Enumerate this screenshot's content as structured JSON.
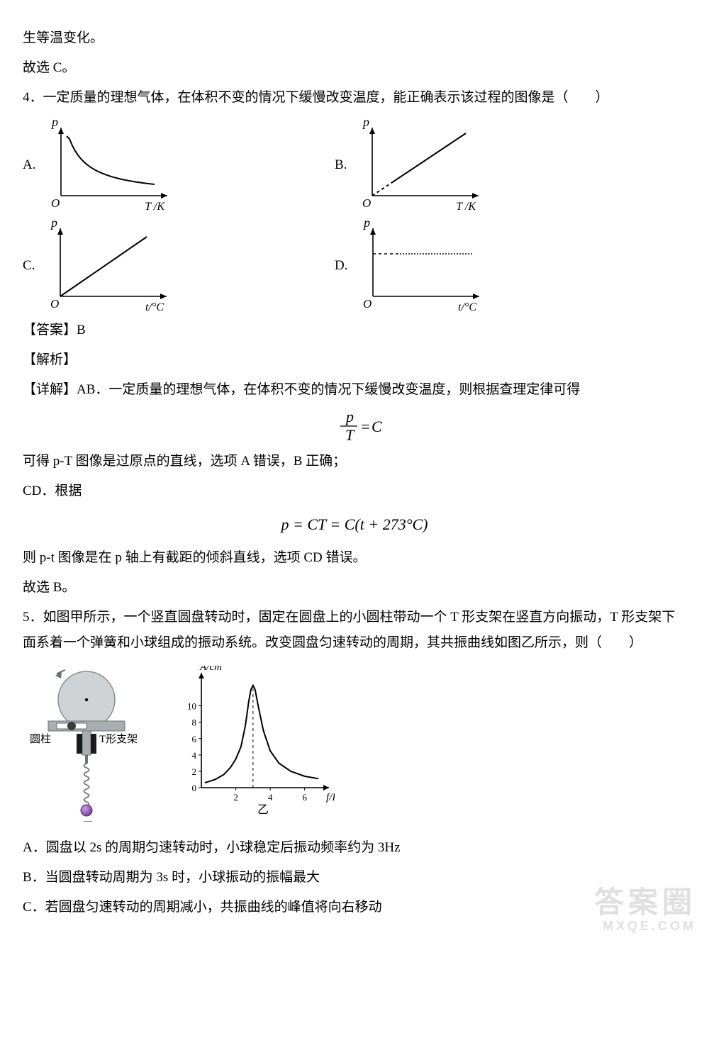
{
  "page_background": "#ffffff",
  "text_color": "#000000",
  "font_family": "SimSun",
  "font_size_pt": 14,
  "intro": {
    "prev_line": "生等温变化。",
    "conclude": "故选 C。"
  },
  "q4": {
    "stem_prefix": "4．一定质量的理想气体，在体积不变的情况下缓慢改变温度，能正确表示该过程的图像是（　　）",
    "options": {
      "A": {
        "letter": "A.",
        "type": "pT_hyperbola",
        "x_label": "T /K",
        "y_label": "p",
        "axis_color": "#000000",
        "curve_color": "#000000",
        "line_width": 2
      },
      "B": {
        "letter": "B.",
        "type": "pT_line_through_origin_offset",
        "x_label": "T /K",
        "y_label": "p",
        "axis_color": "#000000",
        "curve_color": "#000000",
        "dashed_segment": true,
        "line_width": 2
      },
      "C": {
        "letter": "C.",
        "type": "pt_line_through_origin",
        "x_label": "t/°C",
        "y_label": "p",
        "axis_color": "#000000",
        "curve_color": "#000000",
        "line_width": 2
      },
      "D": {
        "letter": "D.",
        "type": "pt_constant_then_flat",
        "x_label": "t/°C",
        "y_label": "p",
        "axis_color": "#000000",
        "curve_color": "#000000",
        "dashed_prefix": true,
        "line_width": 2
      }
    },
    "answer_label": "【答案】B",
    "explain_label": "【解析】",
    "detail_ab": "【详解】AB．一定质量的理想气体，在体积不变的情况下缓慢改变温度，则根据查理定律可得",
    "formula1": "p / T = C",
    "detail_ab_follow": "可得 p-T 图像是过原点的直线，选项 A 错误，B 正确；",
    "detail_cd": "CD．根据",
    "formula2": "p = CT = C(t + 273°C)",
    "detail_cd_follow": "则 p-t 图像是在 p 轴上有截距的倾斜直线，选项 CD 错误。",
    "conclude": "故选 B。"
  },
  "q5": {
    "stem": "5．如图甲所示，一个竖直圆盘转动时，固定在圆盘上的小圆柱带动一个 T 形支架在竖直方向振动，T 形支架下面系着一个弹簧和小球组成的振动系统。改变圆盘匀速转动的周期，其共振曲线如图乙所示，则（　　）",
    "fig_labels": {
      "left": "甲",
      "right": "乙",
      "cylinder": "圆柱",
      "tframe": "T形支架"
    },
    "apparatus_colors": {
      "disk_fill": "#cfd3d6",
      "disk_stroke": "#8a8f94",
      "arrow": "#6b6f73",
      "frame_fill": "#a9adb2",
      "frame_stroke": "#6e7277",
      "slot_fill": "#ffffff",
      "slider_fill": "#1a1a1a",
      "pin_fill": "#3b3b3b",
      "rod_fill": "#6e7277",
      "spring_stroke": "#7a7e83",
      "ball_fill": "#8044a0",
      "ball_stroke": "#542b70",
      "ball_highlight": "#c79fe0"
    },
    "resonance_chart": {
      "type": "resonance_curve",
      "x_label": "f/Hz",
      "y_label": "A/cm",
      "x_ticks": [
        2,
        4,
        6
      ],
      "y_ticks": [
        0,
        2,
        4,
        6,
        8,
        10
      ],
      "xlim": [
        0,
        7
      ],
      "ylim": [
        0,
        13
      ],
      "peak_x": 3,
      "peak_y": 12.5,
      "points": [
        [
          0.2,
          0.6
        ],
        [
          0.8,
          1.0
        ],
        [
          1.3,
          1.6
        ],
        [
          1.7,
          2.5
        ],
        [
          2.0,
          3.5
        ],
        [
          2.3,
          5.0
        ],
        [
          2.55,
          7.5
        ],
        [
          2.75,
          10.5
        ],
        [
          2.88,
          12.0
        ],
        [
          3.0,
          12.5
        ],
        [
          3.12,
          12.0
        ],
        [
          3.3,
          10.0
        ],
        [
          3.6,
          7.0
        ],
        [
          4.0,
          4.5
        ],
        [
          4.5,
          3.0
        ],
        [
          5.2,
          2.0
        ],
        [
          6.0,
          1.4
        ],
        [
          6.8,
          1.1
        ]
      ],
      "axis_color": "#000000",
      "curve_color": "#000000",
      "tick_fontsize": 13,
      "label_fontsize": 15,
      "dashed_peak_x": 3,
      "line_width": 2
    },
    "opt_a": "A．圆盘以 2s 的周期匀速转动时，小球稳定后振动频率约为 3Hz",
    "opt_b": "B．当圆盘转动周期为 3s 时，小球振动的振幅最大",
    "opt_c": "C．若圆盘匀速转动的周期减小，共振曲线的峰值将向右移动"
  },
  "watermark": {
    "main": "答案圈",
    "sub": "MXQE.COM"
  }
}
